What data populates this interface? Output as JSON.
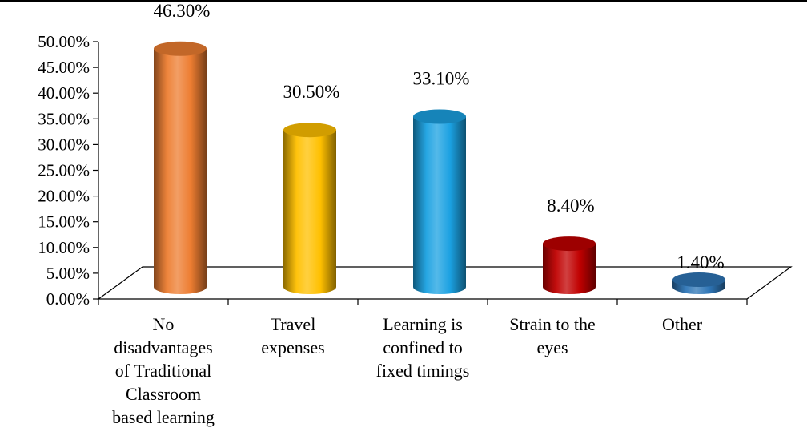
{
  "chart_data": {
    "type": "bar",
    "style": "3d-cylinder",
    "categories": [
      [
        "No",
        "disadvantages",
        "of Traditional",
        "Classroom",
        "based learning"
      ],
      [
        "Travel",
        "expenses"
      ],
      [
        "Learning is",
        "confined to",
        "fixed timings"
      ],
      [
        "Strain to the",
        "eyes"
      ],
      [
        "Other"
      ]
    ],
    "values": [
      46.3,
      30.5,
      33.1,
      8.4,
      1.4
    ],
    "data_labels": [
      "46.30%",
      "30.50%",
      "33.10%",
      "8.40%",
      "1.40%"
    ],
    "colors": [
      "#ED7D31",
      "#FFC000",
      "#1BA1E2",
      "#C00000",
      "#2E75B6"
    ],
    "ylim": [
      0,
      50
    ],
    "yticks": [
      0,
      5,
      10,
      15,
      20,
      25,
      30,
      35,
      40,
      45,
      50
    ],
    "ytick_labels": [
      "0.00%",
      "5.00%",
      "10.00%",
      "15.00%",
      "20.00%",
      "25.00%",
      "30.00%",
      "35.00%",
      "40.00%",
      "45.00%",
      "50.00%"
    ],
    "grid": false,
    "legend": "none"
  }
}
